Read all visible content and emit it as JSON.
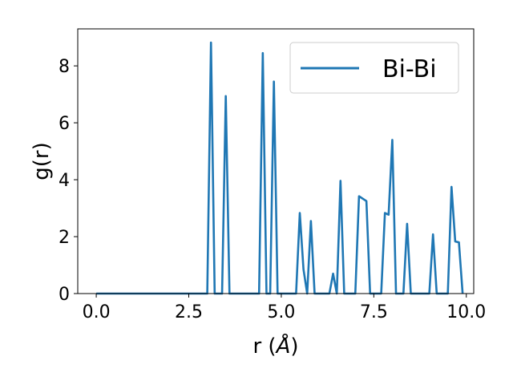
{
  "chart_data": {
    "type": "line",
    "xlabel_main": "r (",
    "xlabel_unit": "Å",
    "xlabel_close": ")",
    "ylabel": "g(r)",
    "xlim": [
      -0.5,
      10.2
    ],
    "ylim": [
      0,
      9.3
    ],
    "xticks": [
      0.0,
      2.5,
      5.0,
      7.5,
      10.0
    ],
    "xtick_labels": [
      "0.0",
      "2.5",
      "5.0",
      "7.5",
      "10.0"
    ],
    "yticks": [
      0,
      2,
      4,
      6,
      8
    ],
    "ytick_labels": [
      "0",
      "2",
      "4",
      "6",
      "8"
    ],
    "legend_position": "top-right",
    "grid": false,
    "series": [
      {
        "name": "Bi-Bi",
        "color": "#1f77b4",
        "x": [
          0.0,
          2.9,
          3.0,
          3.1,
          3.2,
          3.3,
          3.4,
          3.5,
          3.6,
          3.7,
          4.4,
          4.5,
          4.6,
          4.7,
          4.8,
          4.9,
          5.4,
          5.5,
          5.6,
          5.7,
          5.8,
          5.9,
          6.3,
          6.4,
          6.5,
          6.6,
          6.7,
          7.0,
          7.1,
          7.3,
          7.4,
          7.7,
          7.8,
          7.9,
          8.0,
          8.1,
          8.3,
          8.4,
          8.5,
          9.0,
          9.1,
          9.2,
          9.5,
          9.6,
          9.7,
          9.8,
          9.9
        ],
        "y": [
          0.0,
          0.0,
          0.0,
          8.82,
          0.0,
          0.0,
          0.0,
          6.94,
          0.0,
          0.0,
          0.0,
          8.45,
          0.0,
          0.0,
          7.45,
          0.0,
          0.0,
          2.83,
          0.85,
          0.0,
          2.55,
          0.0,
          0.0,
          0.7,
          0.0,
          3.96,
          0.0,
          0.0,
          3.42,
          3.25,
          0.0,
          0.0,
          2.83,
          2.77,
          5.4,
          0.0,
          0.0,
          2.45,
          0.0,
          0.0,
          2.08,
          0.0,
          0.0,
          3.75,
          1.83,
          1.8,
          0.0
        ]
      }
    ]
  }
}
